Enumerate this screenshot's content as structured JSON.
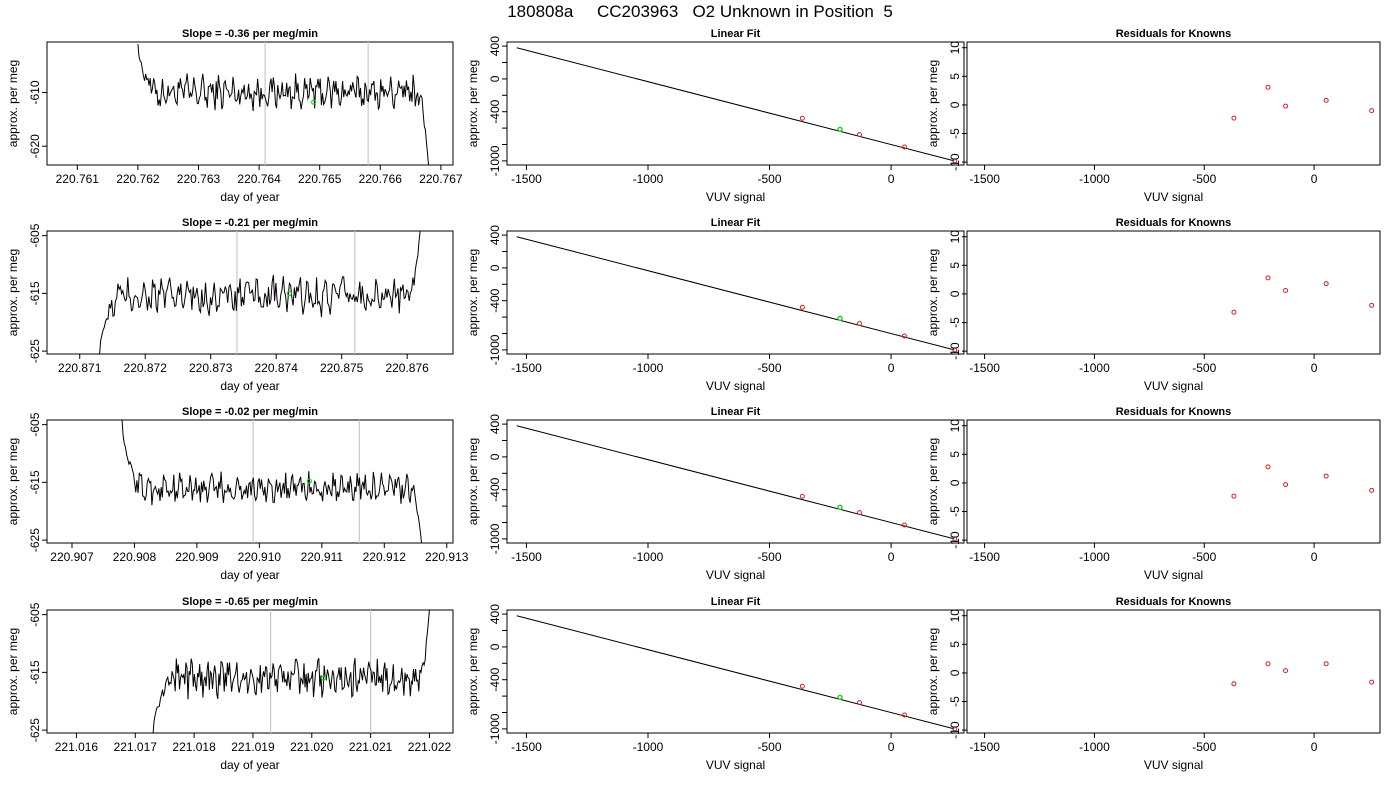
{
  "figure": {
    "title": "180808a     CC203963   O2 Unknown in Position  5"
  },
  "colors": {
    "trace": "#000000",
    "marker": "#22cc22",
    "known_points": "#d62020",
    "guide_lines": "#c8c8c8",
    "axes": "#000000"
  },
  "chart_data": [
    {
      "panel": "row1-trace",
      "type": "line",
      "title": "Slope =  -0.36  per meg/min",
      "xlabel": "day of year",
      "ylabel": "approx. per meg",
      "xlim": [
        220.7605,
        220.7672
      ],
      "ylim": [
        -623.5,
        -600.6
      ],
      "xticks": [
        220.761,
        220.762,
        220.763,
        220.764,
        220.765,
        220.766,
        220.767
      ],
      "xtick_labels": [
        "220.761",
        "220.762",
        "220.763",
        "220.764",
        "220.765",
        "220.766",
        "220.767"
      ],
      "yticks": [
        -620,
        -610
      ],
      "ytick_labels": [
        "-620",
        "-610"
      ],
      "guide_x": [
        220.7641,
        220.7658
      ],
      "marker": {
        "x": 220.7649,
        "y": -611.8
      },
      "trace_start": [
        220.762,
        -601.0
      ],
      "trace_end": [
        220.7668,
        -624.0
      ],
      "trace_base": -610.0,
      "trace_amp": 2.5
    },
    {
      "panel": "row1-fit",
      "type": "scatter",
      "title": "Linear Fit",
      "xlabel": "VUV signal",
      "ylabel": "approx. per meg",
      "xlim": [
        -1580,
        300
      ],
      "ylim": [
        -1050,
        450
      ],
      "xticks": [
        -1500,
        -1000,
        -500,
        0
      ],
      "xtick_labels": [
        "-1500",
        "-1000",
        "-500",
        "0"
      ],
      "yticks": [
        400,
        0,
        -400,
        -1000
      ],
      "ytick_labels": [
        "400",
        "0",
        "-400",
        "-1000"
      ],
      "y_minor_ticks": [
        200,
        -200,
        -600,
        -800
      ],
      "fit_line": [
        [
          -1540,
          380
        ],
        [
          260,
          -1000
        ]
      ],
      "known_points": [
        {
          "x": -365,
          "y": -480
        },
        {
          "x": -130,
          "y": -680
        },
        {
          "x": 55,
          "y": -830
        },
        {
          "x": 262,
          "y": -1000
        }
      ],
      "unknown_point": {
        "x": -210,
        "y": -615
      }
    },
    {
      "panel": "row1-residuals",
      "type": "scatter",
      "title": "Residuals for Knowns",
      "xlabel": "VUV signal",
      "ylabel": "approx. per meg",
      "xlim": [
        -1580,
        300
      ],
      "ylim": [
        -10.5,
        11
      ],
      "xticks": [
        -1500,
        -1000,
        -500,
        0
      ],
      "xtick_labels": [
        "-1500",
        "-1000",
        "-500",
        "0"
      ],
      "yticks": [
        10,
        5,
        0,
        -5,
        -10
      ],
      "ytick_labels": [
        "10",
        "5",
        "0",
        "-5",
        "-10"
      ],
      "points": [
        {
          "x": -365,
          "y": -2.3
        },
        {
          "x": -210,
          "y": 3.1
        },
        {
          "x": -130,
          "y": -0.2
        },
        {
          "x": 55,
          "y": 0.8
        },
        {
          "x": 262,
          "y": -1.0
        }
      ]
    },
    {
      "panel": "row2-trace",
      "type": "line",
      "title": "Slope =  -0.21  per meg/min",
      "xlabel": "day of year",
      "ylabel": "approx. per meg",
      "xlim": [
        220.8705,
        220.8767
      ],
      "ylim": [
        -625.5,
        -604.2
      ],
      "xticks": [
        220.871,
        220.872,
        220.873,
        220.874,
        220.875,
        220.876
      ],
      "xtick_labels": [
        "220.871",
        "220.872",
        "220.873",
        "220.874",
        "220.875",
        "220.876"
      ],
      "yticks": [
        -625,
        -615,
        -605
      ],
      "ytick_labels": [
        "-625",
        "-615",
        "-605"
      ],
      "guide_x": [
        220.8734,
        220.8752
      ],
      "marker": {
        "x": 220.8742,
        "y": -615.0
      },
      "trace_start": [
        220.8713,
        -626.0
      ],
      "trace_end": [
        220.8762,
        -604.0
      ],
      "trace_base": -615.5,
      "trace_amp": 2.5
    },
    {
      "panel": "row2-fit",
      "type": "scatter",
      "title": "Linear Fit",
      "xlabel": "VUV signal",
      "ylabel": "approx. per meg",
      "xlim": [
        -1580,
        300
      ],
      "ylim": [
        -1050,
        450
      ],
      "xticks": [
        -1500,
        -1000,
        -500,
        0
      ],
      "xtick_labels": [
        "-1500",
        "-1000",
        "-500",
        "0"
      ],
      "yticks": [
        400,
        0,
        -400,
        -1000
      ],
      "ytick_labels": [
        "400",
        "0",
        "-400",
        "-1000"
      ],
      "y_minor_ticks": [
        200,
        -200,
        -600,
        -800
      ],
      "fit_line": [
        [
          -1540,
          380
        ],
        [
          260,
          -1000
        ]
      ],
      "known_points": [
        {
          "x": -365,
          "y": -480
        },
        {
          "x": -130,
          "y": -680
        },
        {
          "x": 55,
          "y": -830
        },
        {
          "x": 262,
          "y": -1000
        }
      ],
      "unknown_point": {
        "x": -210,
        "y": -615
      }
    },
    {
      "panel": "row2-residuals",
      "type": "scatter",
      "title": "Residuals for Knowns",
      "xlabel": "VUV signal",
      "ylabel": "approx. per meg",
      "xlim": [
        -1580,
        300
      ],
      "ylim": [
        -10.5,
        11
      ],
      "xticks": [
        -1500,
        -1000,
        -500,
        0
      ],
      "xtick_labels": [
        "-1500",
        "-1000",
        "-500",
        "0"
      ],
      "yticks": [
        10,
        5,
        0,
        -5,
        -10
      ],
      "ytick_labels": [
        "10",
        "5",
        "0",
        "-5",
        "-10"
      ],
      "points": [
        {
          "x": -365,
          "y": -3.2
        },
        {
          "x": -210,
          "y": 2.8
        },
        {
          "x": -130,
          "y": 0.6
        },
        {
          "x": 55,
          "y": 1.8
        },
        {
          "x": 262,
          "y": -2.0
        }
      ]
    },
    {
      "panel": "row3-trace",
      "type": "line",
      "title": "Slope =  -0.02  per meg/min",
      "xlabel": "day of year",
      "ylabel": "approx. per meg",
      "xlim": [
        220.9066,
        220.9131
      ],
      "ylim": [
        -625.5,
        -604.2
      ],
      "xticks": [
        220.907,
        220.908,
        220.909,
        220.91,
        220.911,
        220.912,
        220.913
      ],
      "xtick_labels": [
        "220.907",
        "220.908",
        "220.909",
        "220.910",
        "220.911",
        "220.912",
        "220.913"
      ],
      "yticks": [
        -625,
        -615,
        -605
      ],
      "ytick_labels": [
        "-625",
        "-615",
        "-605"
      ],
      "guide_x": [
        220.9099,
        220.9116
      ],
      "marker": {
        "x": 220.9108,
        "y": -614.8
      },
      "trace_start": [
        220.9078,
        -604.0
      ],
      "trace_end": [
        220.9126,
        -626.0
      ],
      "trace_base": -616.0,
      "trace_amp": 2.0
    },
    {
      "panel": "row3-fit",
      "type": "scatter",
      "title": "Linear Fit",
      "xlabel": "VUV signal",
      "ylabel": "approx. per meg",
      "xlim": [
        -1580,
        300
      ],
      "ylim": [
        -1050,
        450
      ],
      "xticks": [
        -1500,
        -1000,
        -500,
        0
      ],
      "xtick_labels": [
        "-1500",
        "-1000",
        "-500",
        "0"
      ],
      "yticks": [
        400,
        0,
        -400,
        -1000
      ],
      "ytick_labels": [
        "400",
        "0",
        "-400",
        "-1000"
      ],
      "y_minor_ticks": [
        200,
        -200,
        -600,
        -800
      ],
      "fit_line": [
        [
          -1540,
          380
        ],
        [
          260,
          -1000
        ]
      ],
      "known_points": [
        {
          "x": -365,
          "y": -480
        },
        {
          "x": -130,
          "y": -680
        },
        {
          "x": 55,
          "y": -830
        },
        {
          "x": 262,
          "y": -1000
        }
      ],
      "unknown_point": {
        "x": -210,
        "y": -615
      }
    },
    {
      "panel": "row3-residuals",
      "type": "scatter",
      "title": "Residuals for Knowns",
      "xlabel": "VUV signal",
      "ylabel": "approx. per meg",
      "xlim": [
        -1580,
        300
      ],
      "ylim": [
        -10.5,
        11
      ],
      "xticks": [
        -1500,
        -1000,
        -500,
        0
      ],
      "xtick_labels": [
        "-1500",
        "-1000",
        "-500",
        "0"
      ],
      "yticks": [
        10,
        5,
        0,
        -5,
        -10
      ],
      "ytick_labels": [
        "10",
        "5",
        "0",
        "-5",
        "-10"
      ],
      "points": [
        {
          "x": -365,
          "y": -2.3
        },
        {
          "x": -210,
          "y": 2.8
        },
        {
          "x": -130,
          "y": -0.3
        },
        {
          "x": 55,
          "y": 1.2
        },
        {
          "x": 262,
          "y": -1.3
        }
      ]
    },
    {
      "panel": "row4-trace",
      "type": "line",
      "title": "Slope =  -0.65  per meg/min",
      "xlabel": "day of year",
      "ylabel": "approx. per meg",
      "xlim": [
        221.0155,
        221.0224
      ],
      "ylim": [
        -625.5,
        -604.2
      ],
      "xticks": [
        221.016,
        221.017,
        221.018,
        221.019,
        221.02,
        221.021,
        221.022
      ],
      "xtick_labels": [
        "221.016",
        "221.017",
        "221.018",
        "221.019",
        "221.020",
        "221.021",
        "221.022"
      ],
      "yticks": [
        -625,
        -615,
        -605
      ],
      "ytick_labels": [
        "-625",
        "-615",
        "-605"
      ],
      "guide_x": [
        221.0193,
        221.021
      ],
      "marker": {
        "x": 221.0202,
        "y": -616.0
      },
      "trace_start": [
        221.0173,
        -626.0
      ],
      "trace_end": [
        221.022,
        -604.0
      ],
      "trace_base": -616.0,
      "trace_amp": 2.5
    },
    {
      "panel": "row4-fit",
      "type": "scatter",
      "title": "Linear Fit",
      "xlabel": "VUV signal",
      "ylabel": "approx. per meg",
      "xlim": [
        -1580,
        300
      ],
      "ylim": [
        -1050,
        450
      ],
      "xticks": [
        -1500,
        -1000,
        -500,
        0
      ],
      "xtick_labels": [
        "-1500",
        "-1000",
        "-500",
        "0"
      ],
      "yticks": [
        400,
        0,
        -400,
        -1000
      ],
      "ytick_labels": [
        "400",
        "0",
        "-400",
        "-1000"
      ],
      "y_minor_ticks": [
        200,
        -200,
        -600,
        -800
      ],
      "fit_line": [
        [
          -1540,
          380
        ],
        [
          260,
          -1000
        ]
      ],
      "known_points": [
        {
          "x": -365,
          "y": -480
        },
        {
          "x": -130,
          "y": -680
        },
        {
          "x": 55,
          "y": -830
        },
        {
          "x": 262,
          "y": -1000
        }
      ],
      "unknown_point": {
        "x": -210,
        "y": -615
      }
    },
    {
      "panel": "row4-residuals",
      "type": "scatter",
      "title": "Residuals for Knowns",
      "xlabel": "VUV signal",
      "ylabel": "approx. per meg",
      "xlim": [
        -1580,
        300
      ],
      "ylim": [
        -10.5,
        11
      ],
      "xticks": [
        -1500,
        -1000,
        -500,
        0
      ],
      "xtick_labels": [
        "-1500",
        "-1000",
        "-500",
        "0"
      ],
      "yticks": [
        10,
        5,
        0,
        -5,
        -10
      ],
      "ytick_labels": [
        "10",
        "5",
        "0",
        "-5",
        "-10"
      ],
      "points": [
        {
          "x": -365,
          "y": -1.9
        },
        {
          "x": -210,
          "y": 1.6
        },
        {
          "x": -130,
          "y": 0.4
        },
        {
          "x": 55,
          "y": 1.6
        },
        {
          "x": 262,
          "y": -1.6
        }
      ]
    }
  ]
}
